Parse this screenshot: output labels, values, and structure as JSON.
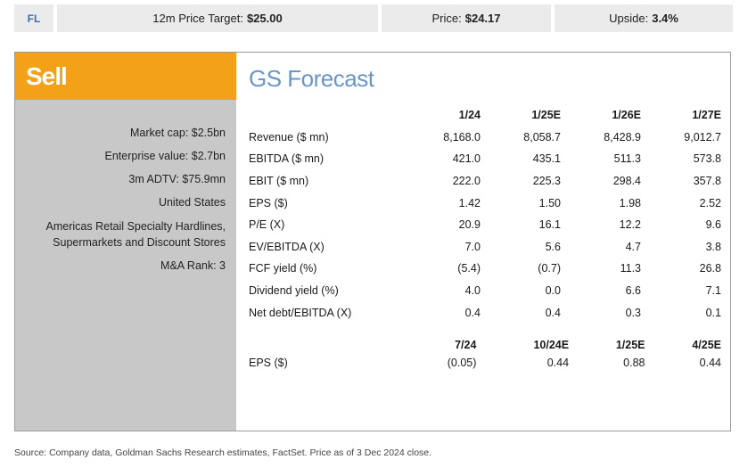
{
  "topbar": {
    "ticker": "FL",
    "target_label": "12m Price Target:",
    "target_value": "$25.00",
    "price_label": "Price:",
    "price_value": "$24.17",
    "upside_label": "Upside:",
    "upside_value": "3.4%"
  },
  "rating": "Sell",
  "metrics": [
    "Market cap: $2.5bn",
    "Enterprise value: $2.7bn",
    "3m ADTV: $75.9mn",
    "United States",
    "Americas Retail Specialty Hardlines, Supermarkets and Discount Stores",
    "M&A Rank: 3"
  ],
  "forecast": {
    "title": "GS Forecast",
    "columns": [
      "1/24",
      "1/25E",
      "1/26E",
      "1/27E"
    ],
    "rows": [
      {
        "label": "Revenue ($ mn)",
        "values": [
          "8,168.0",
          "8,058.7",
          "8,428.9",
          "9,012.7"
        ]
      },
      {
        "label": "EBITDA ($ mn)",
        "values": [
          "421.0",
          "435.1",
          "511.3",
          "573.8"
        ]
      },
      {
        "label": "EBIT ($ mn)",
        "values": [
          "222.0",
          "225.3",
          "298.4",
          "357.8"
        ]
      },
      {
        "label": "EPS ($)",
        "values": [
          "1.42",
          "1.50",
          "1.98",
          "2.52"
        ]
      },
      {
        "label": "P/E (X)",
        "values": [
          "20.9",
          "16.1",
          "12.2",
          "9.6"
        ]
      },
      {
        "label": "EV/EBITDA (X)",
        "values": [
          "7.0",
          "5.6",
          "4.7",
          "3.8"
        ]
      },
      {
        "label": "FCF yield (%)",
        "values": [
          "(5.4)",
          "(0.7)",
          "11.3",
          "26.8"
        ]
      },
      {
        "label": "Dividend yield (%)",
        "values": [
          "4.0",
          "0.0",
          "6.6",
          "7.1"
        ]
      },
      {
        "label": "Net debt/EBITDA (X)",
        "values": [
          "0.4",
          "0.4",
          "0.3",
          "0.1"
        ]
      }
    ],
    "quarter_columns": [
      "7/24",
      "10/24E",
      "1/25E",
      "4/25E"
    ],
    "quarter_row": {
      "label": "EPS ($)",
      "values": [
        "(0.05)",
        "0.44",
        "0.88",
        "0.44"
      ]
    }
  },
  "source": "Source: Company data, Goldman Sachs Research estimates, FactSet. Price as of 3 Dec 2024 close."
}
